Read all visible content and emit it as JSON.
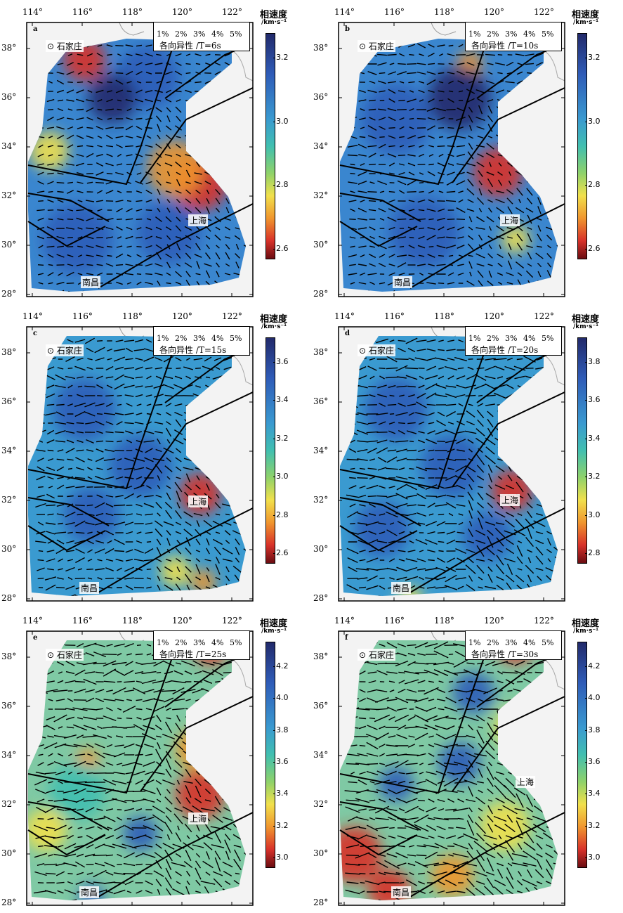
{
  "colorbar_title": "相速度",
  "colorbar_unit": "/km·s⁻¹",
  "lon_labels": [
    "114°",
    "116°",
    "118°",
    "120°",
    "122°"
  ],
  "lat_labels": [
    "38°",
    "36°",
    "34°",
    "32°",
    "30°",
    "28°"
  ],
  "cities": {
    "shijiazhuang": "石家庄",
    "shanghai": "上海",
    "nanchang": "南昌"
  },
  "legend_pcts": [
    "1%",
    "2%",
    "3%",
    "4%",
    "5%"
  ],
  "colors": {
    "dark_blue": "#222a6b",
    "blue": "#2f5cb8",
    "cyan": "#41bfb0",
    "yellow": "#f1e04c",
    "red": "#d8322a"
  },
  "panels": [
    {
      "label": "a",
      "period_title": "各向异性 /T=6s",
      "cbar_ticks": [
        "3.2",
        "3.0",
        "2.8",
        "2.6"
      ]
    },
    {
      "label": "b",
      "period_title": "各向异性 /T=10s",
      "cbar_ticks": [
        "3.2",
        "3.0",
        "2.8",
        "2.6"
      ]
    },
    {
      "label": "c",
      "period_title": "各向异性 /T=15s",
      "cbar_ticks": [
        "3.6",
        "3.4",
        "3.2",
        "3.0",
        "2.8",
        "2.6"
      ]
    },
    {
      "label": "d",
      "period_title": "各向异性 /T=20s",
      "cbar_ticks": [
        "3.8",
        "3.6",
        "3.4",
        "3.2",
        "3.0",
        "2.8"
      ]
    },
    {
      "label": "e",
      "period_title": "各向异性 /T=25s",
      "cbar_ticks": [
        "4.2",
        "4.0",
        "3.8",
        "3.6",
        "3.4",
        "3.2",
        "3.0"
      ]
    },
    {
      "label": "f",
      "period_title": "各向异性 /T=30s",
      "cbar_ticks": [
        "4.2",
        "4.0",
        "3.8",
        "3.6",
        "3.4",
        "3.2",
        "3.0"
      ]
    }
  ]
}
